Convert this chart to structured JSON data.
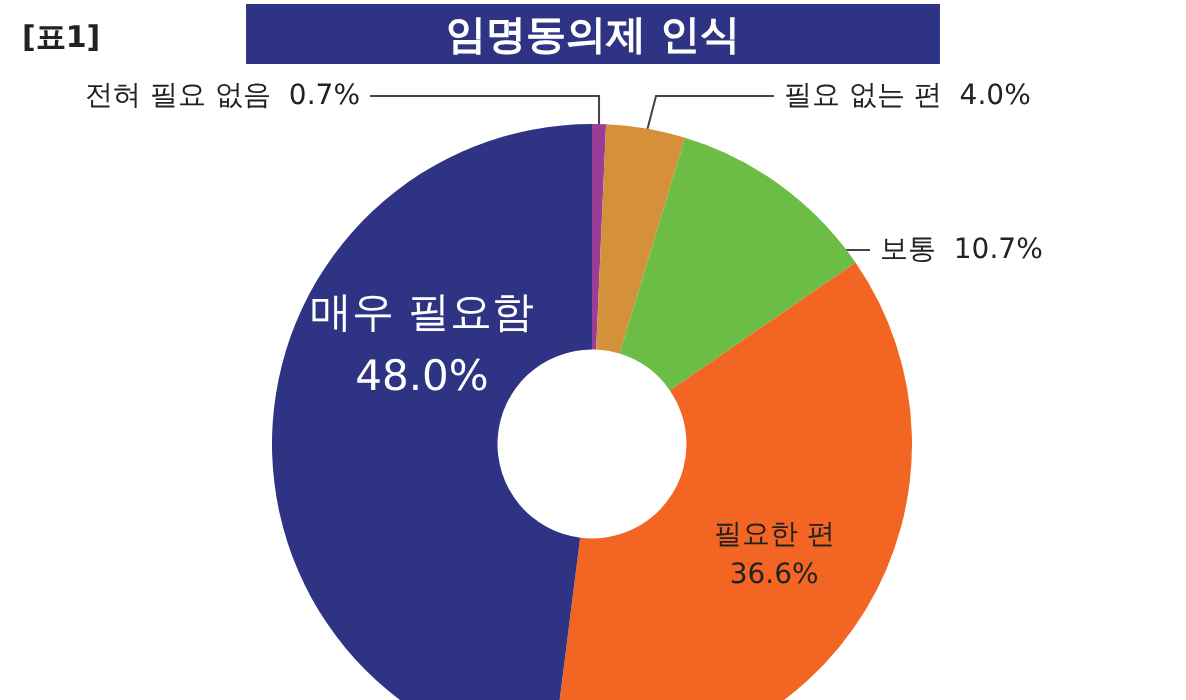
{
  "chart_data": {
    "type": "donut",
    "title": "임명동의제 인식",
    "annotations": [
      "[표1]"
    ],
    "categories": [
      "전혀 필요 없음",
      "필요 없는 편",
      "보통",
      "필요한 편",
      "매우 필요함"
    ],
    "values": [
      0.7,
      4.0,
      10.7,
      36.6,
      48.0
    ],
    "value_labels": [
      "0.7%",
      "4.0%",
      "10.7%",
      "36.6%",
      "48.0%"
    ],
    "colors": [
      "#9b3d97",
      "#d4913a",
      "#6bbd45",
      "#f26522",
      "#2e3383"
    ],
    "legend": false
  }
}
